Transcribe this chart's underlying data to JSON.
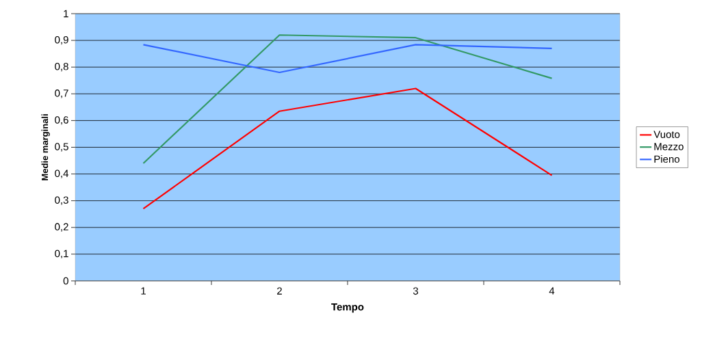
{
  "chart_data": {
    "type": "line",
    "xlabel": "Tempo",
    "ylabel": "Medie marginali",
    "categories": [
      "1",
      "2",
      "3",
      "4"
    ],
    "series": [
      {
        "name": "Vuoto",
        "color": "#ff0000",
        "values": [
          0.27,
          0.635,
          0.72,
          0.395
        ]
      },
      {
        "name": "Mezzo",
        "color": "#339966",
        "values": [
          0.44,
          0.92,
          0.91,
          0.758
        ]
      },
      {
        "name": "Pieno",
        "color": "#3366ff",
        "values": [
          0.884,
          0.78,
          0.884,
          0.87
        ]
      }
    ],
    "ylim": [
      0,
      1
    ],
    "yticks": [
      {
        "value": 0,
        "label": "0"
      },
      {
        "value": 0.1,
        "label": "0,1"
      },
      {
        "value": 0.2,
        "label": "0,2"
      },
      {
        "value": 0.3,
        "label": "0,3"
      },
      {
        "value": 0.4,
        "label": "0,4"
      },
      {
        "value": 0.5,
        "label": "0,5"
      },
      {
        "value": 0.6,
        "label": "0,6"
      },
      {
        "value": 0.7,
        "label": "0,7"
      },
      {
        "value": 0.8,
        "label": "0,8"
      },
      {
        "value": 0.9,
        "label": "0,9"
      },
      {
        "value": 1,
        "label": "1"
      }
    ],
    "grid": "y",
    "legend": "right"
  }
}
